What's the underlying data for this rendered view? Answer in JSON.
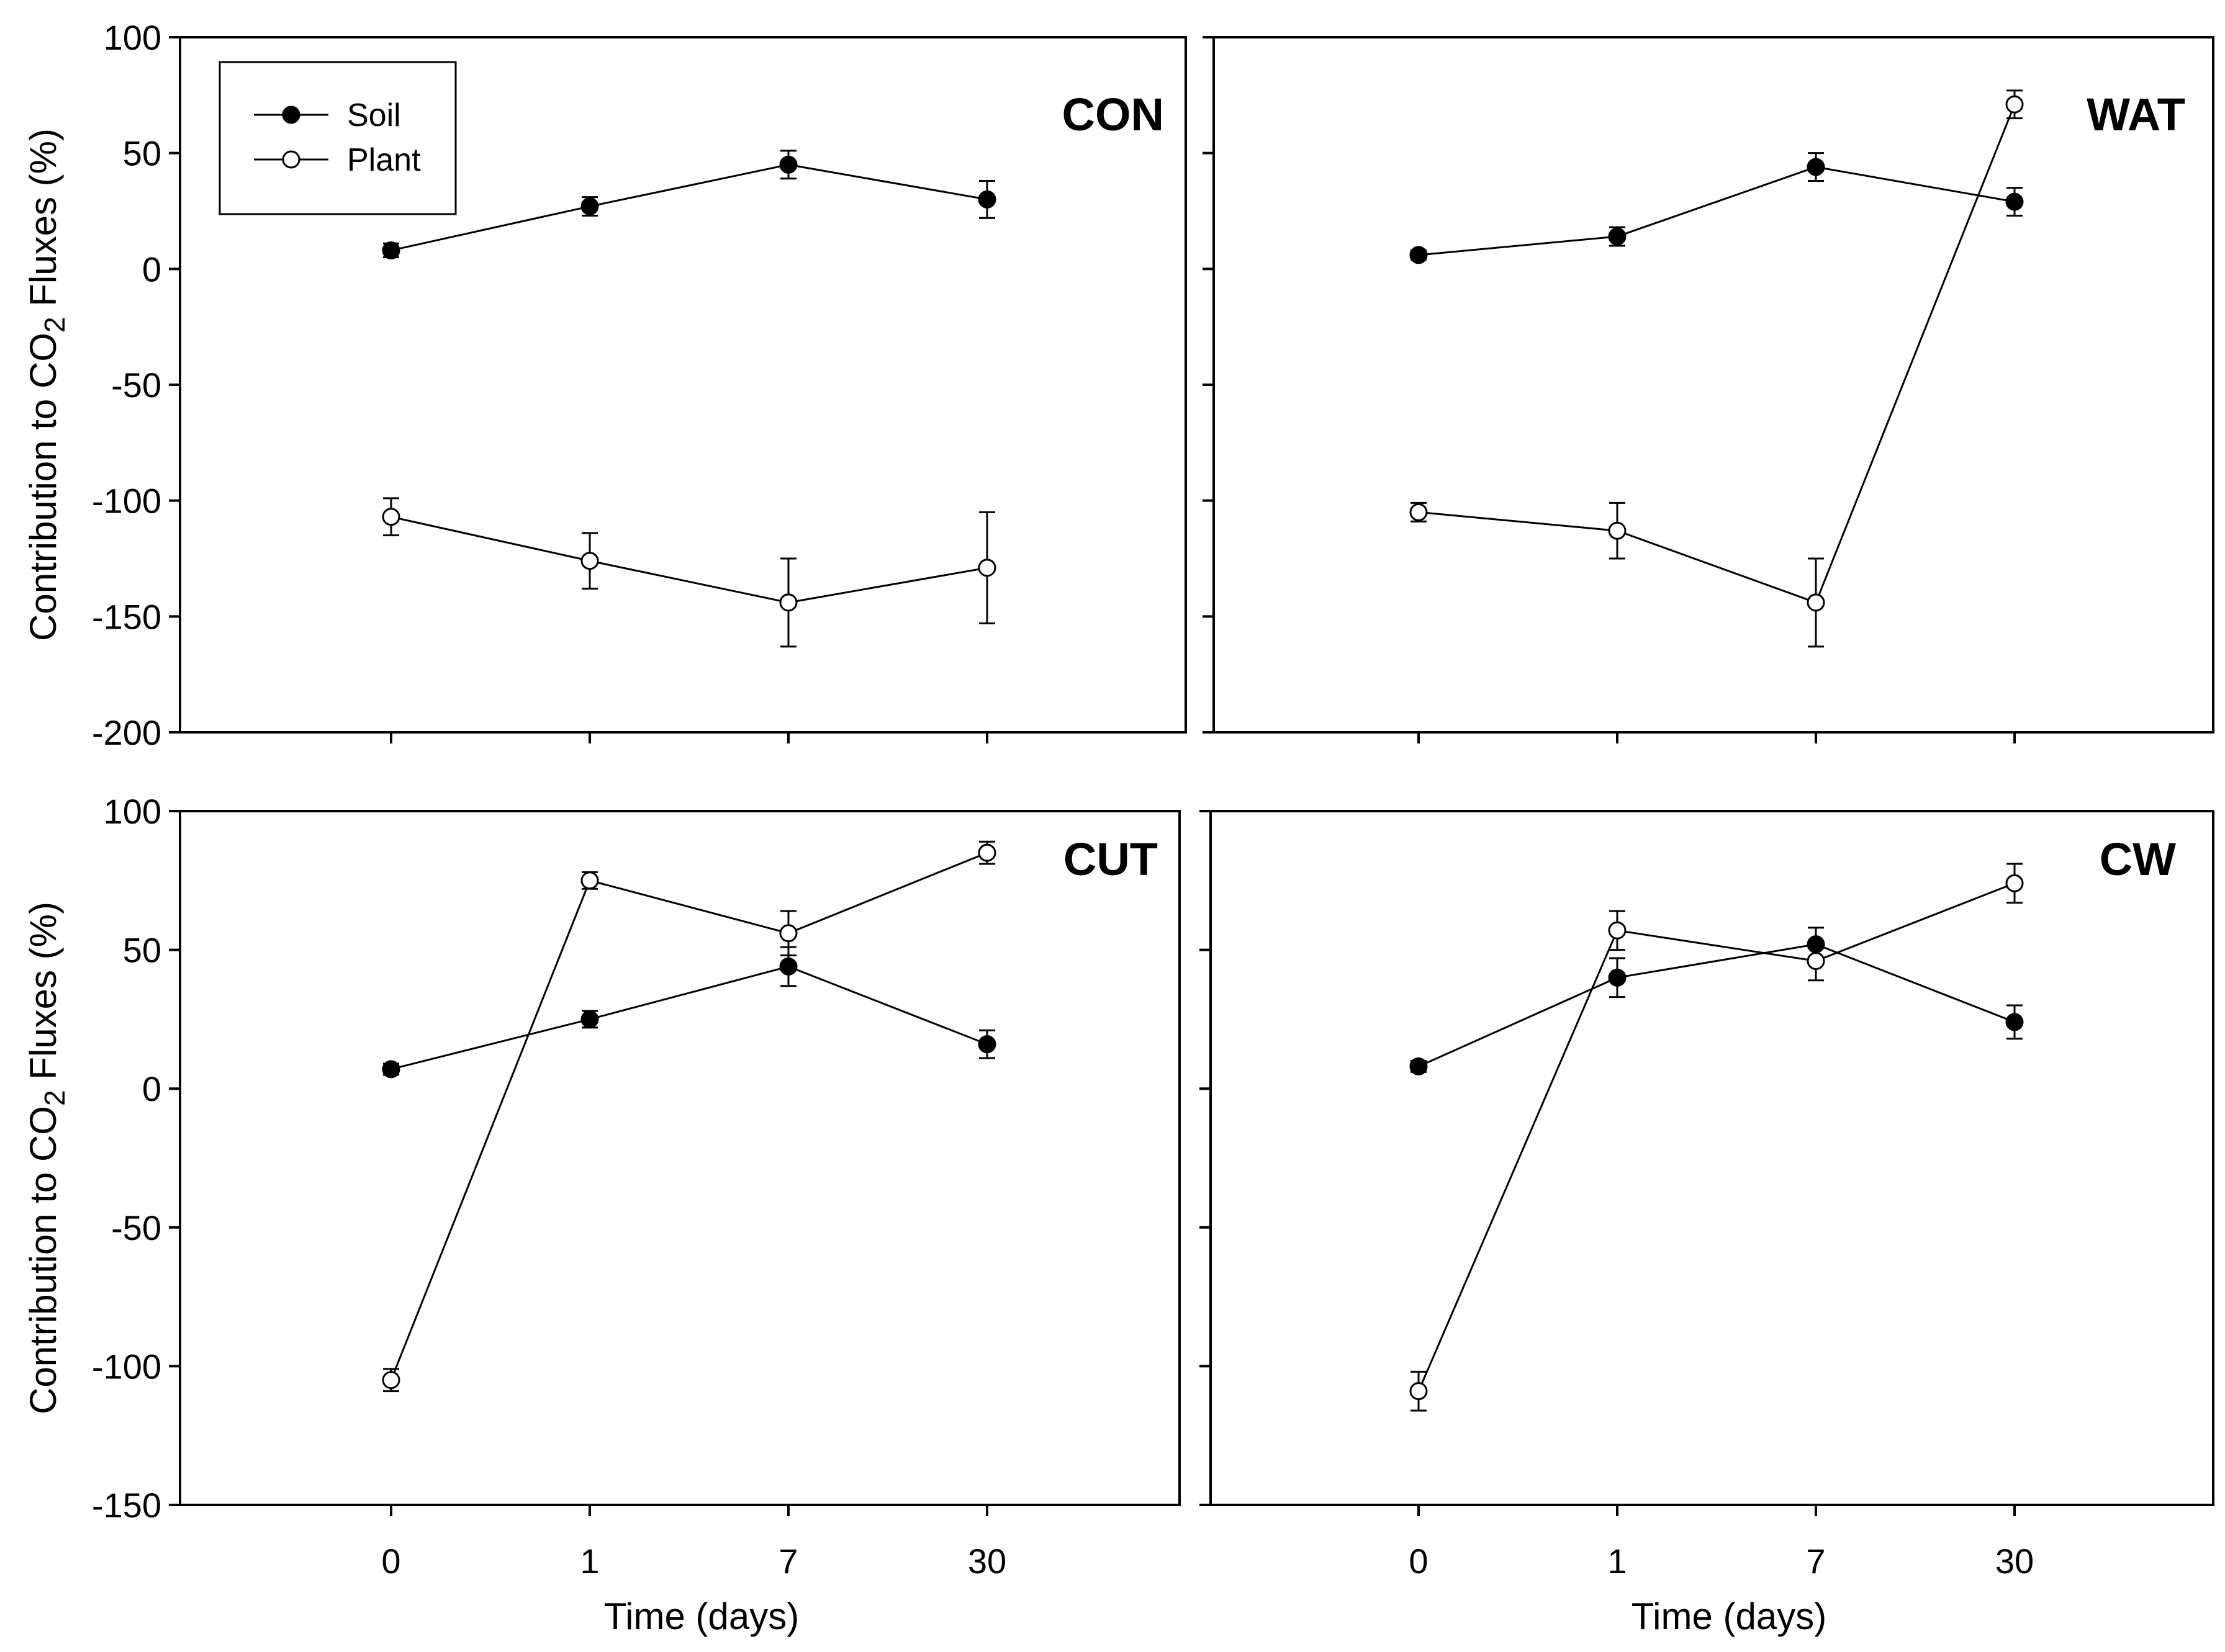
{
  "chart_data": [
    {
      "type": "line",
      "panel": "CON",
      "title": "CON",
      "ylabel": "Contribution to CO2 Fluxes (%)",
      "ylabel_main": "Contribution to CO",
      "ylabel_sub": "2",
      "ylabel_tail": " Fluxes (%)",
      "xlabel": "",
      "categories": [
        "0",
        "1",
        "7",
        "30"
      ],
      "ylim": [
        -200,
        100
      ],
      "yticks": [
        100,
        50,
        0,
        -50,
        -100,
        -150,
        -200
      ],
      "show_y_labels": true,
      "show_x_labels": false,
      "legend": {
        "position": "top-left",
        "entries": [
          "Soil",
          "Plant"
        ]
      },
      "series": [
        {
          "name": "Soil",
          "marker": "filled",
          "values": [
            8,
            27,
            45,
            30
          ],
          "errors": [
            3,
            4,
            6,
            8
          ]
        },
        {
          "name": "Plant",
          "marker": "open",
          "values": [
            -107,
            -126,
            -144,
            -129
          ],
          "errors": [
            8,
            12,
            19,
            24
          ]
        }
      ]
    },
    {
      "type": "line",
      "panel": "WAT",
      "title": "WAT",
      "ylabel": "",
      "xlabel": "",
      "categories": [
        "0",
        "1",
        "7",
        "30"
      ],
      "ylim": [
        -200,
        100
      ],
      "yticks": [
        100,
        50,
        0,
        -50,
        -100,
        -150,
        -200
      ],
      "show_y_labels": false,
      "show_x_labels": false,
      "series": [
        {
          "name": "Soil",
          "marker": "filled",
          "values": [
            6,
            14,
            44,
            29
          ],
          "errors": [
            2,
            4,
            6,
            6
          ]
        },
        {
          "name": "Plant",
          "marker": "open",
          "values": [
            -105,
            -113,
            -144,
            71
          ],
          "errors": [
            4,
            12,
            19,
            6
          ]
        }
      ]
    },
    {
      "type": "line",
      "panel": "CUT",
      "title": "CUT",
      "ylabel": "Contribution to CO2 Fluxes (%)",
      "ylabel_main": "Contribution to CO",
      "ylabel_sub": "2",
      "ylabel_tail": " Fluxes (%)",
      "xlabel": "Time (days)",
      "categories": [
        "0",
        "1",
        "7",
        "30"
      ],
      "ylim": [
        -150,
        100
      ],
      "yticks": [
        100,
        50,
        0,
        -50,
        -100,
        -150
      ],
      "show_y_labels": true,
      "show_x_labels": true,
      "series": [
        {
          "name": "Soil",
          "marker": "filled",
          "values": [
            7,
            25,
            44,
            16
          ],
          "errors": [
            2,
            3,
            7,
            5
          ]
        },
        {
          "name": "Plant",
          "marker": "open",
          "values": [
            -105,
            75,
            56,
            85
          ],
          "errors": [
            4,
            3,
            8,
            4
          ]
        }
      ]
    },
    {
      "type": "line",
      "panel": "CW",
      "title": "CW",
      "ylabel": "",
      "xlabel": "Time (days)",
      "categories": [
        "0",
        "1",
        "7",
        "30"
      ],
      "ylim": [
        -150,
        100
      ],
      "yticks": [
        100,
        50,
        0,
        -50,
        -100,
        -150
      ],
      "show_y_labels": false,
      "show_x_labels": true,
      "series": [
        {
          "name": "Soil",
          "marker": "filled",
          "values": [
            8,
            40,
            52,
            24
          ],
          "errors": [
            2,
            7,
            6,
            6
          ]
        },
        {
          "name": "Plant",
          "marker": "open",
          "values": [
            -109,
            57,
            46,
            74
          ],
          "errors": [
            7,
            7,
            7,
            7
          ]
        }
      ]
    }
  ]
}
